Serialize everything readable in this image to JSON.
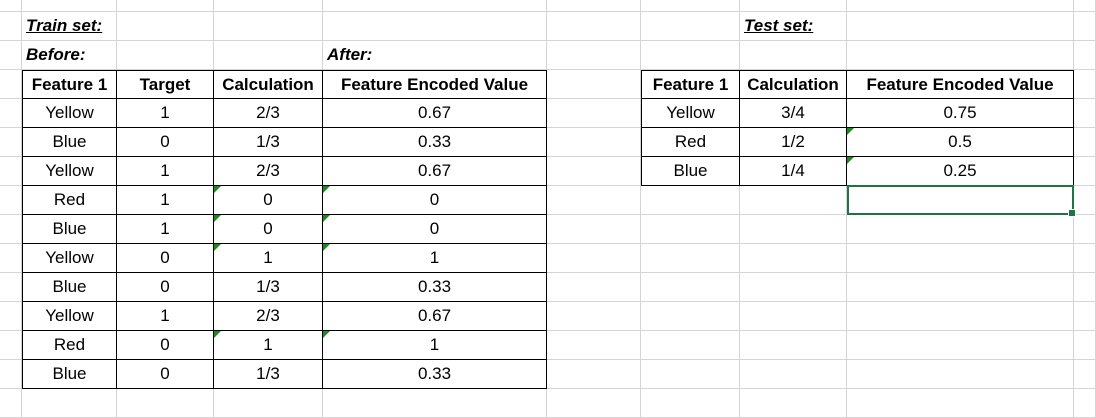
{
  "sheet": {
    "notes": {
      "train": "Train set:",
      "before": "Before:",
      "after": "After:",
      "test": "Test set:"
    },
    "train": {
      "headers": [
        "Feature 1",
        "Target",
        "Calculation",
        "Feature Encoded Value"
      ],
      "rows": [
        [
          "Yellow",
          "1",
          "2/3",
          "0.67"
        ],
        [
          "Blue",
          "0",
          "1/3",
          "0.33"
        ],
        [
          "Yellow",
          "1",
          "2/3",
          "0.67"
        ],
        [
          "Red",
          "1",
          "0",
          "0"
        ],
        [
          "Blue",
          "1",
          "0",
          "0"
        ],
        [
          "Yellow",
          "0",
          "1",
          "1"
        ],
        [
          "Blue",
          "0",
          "1/3",
          "0.33"
        ],
        [
          "Yellow",
          "1",
          "2/3",
          "0.67"
        ],
        [
          "Red",
          "0",
          "1",
          "1"
        ],
        [
          "Blue",
          "0",
          "1/3",
          "0.33"
        ]
      ]
    },
    "test": {
      "headers": [
        "Feature 1",
        "Calculation",
        "Feature Encoded Value"
      ],
      "rows": [
        [
          "Yellow",
          "3/4",
          "0.75"
        ],
        [
          "Red",
          "1/2",
          "0.5"
        ],
        [
          "Blue",
          "1/4",
          "0.25"
        ]
      ]
    },
    "colors": {
      "gridline": "#d4d4d4",
      "table_border": "#000000",
      "error_indicator": "#1e8a1e",
      "selection": "#217346"
    }
  }
}
